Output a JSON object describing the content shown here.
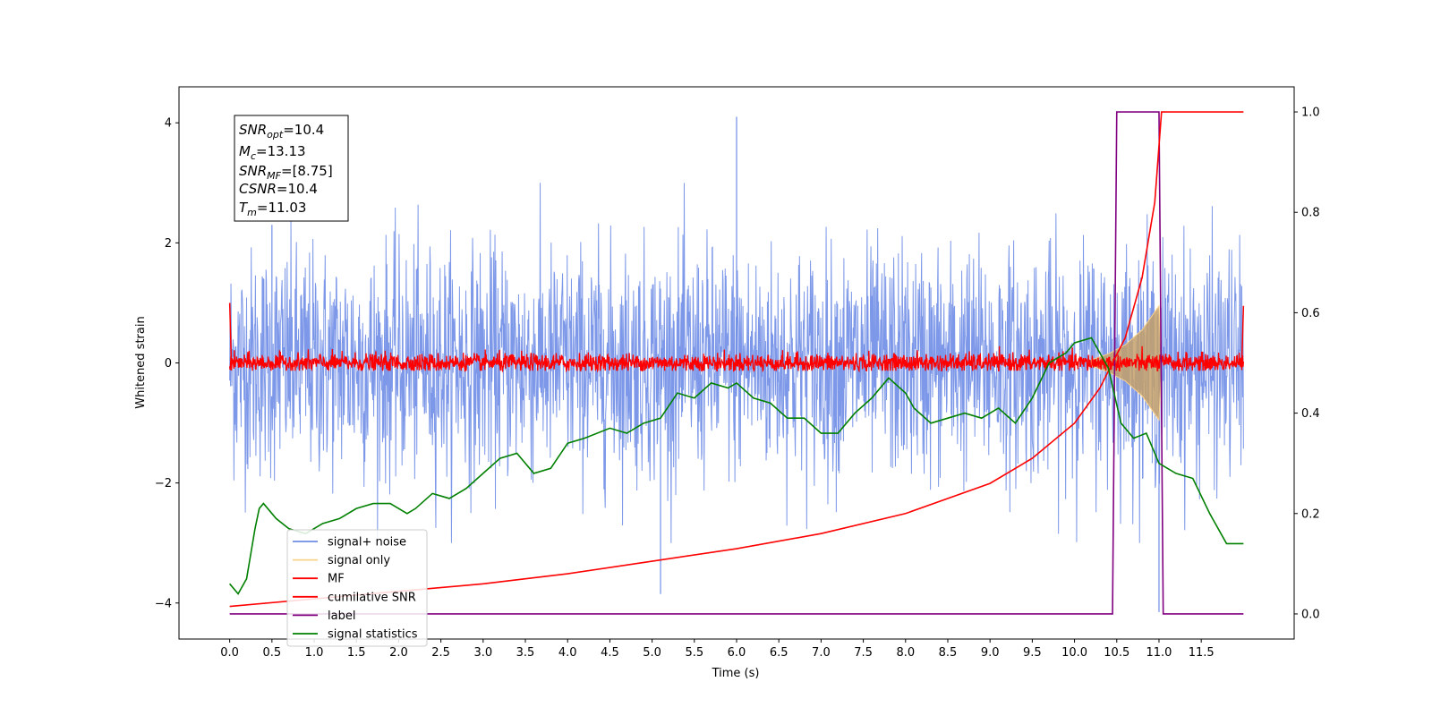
{
  "chart_data": {
    "type": "line",
    "xlabel": "Time (s)",
    "ylabel": "Whitened strain",
    "xlim": [
      -0.6,
      12.6
    ],
    "ylim": [
      -4.6,
      4.6
    ],
    "y2lim": [
      -0.05,
      1.05
    ],
    "x_ticks": [
      "0.0",
      "0.5",
      "1.0",
      "1.5",
      "2.0",
      "2.5",
      "3.0",
      "3.5",
      "4.0",
      "4.5",
      "5.0",
      "5.5",
      "6.0",
      "6.5",
      "7.0",
      "7.5",
      "8.0",
      "8.5",
      "9.0",
      "9.5",
      "10.0",
      "10.5",
      "11.0",
      "11.5"
    ],
    "y_ticks": [
      "4",
      "2",
      "0",
      "−2",
      "−4"
    ],
    "y2_ticks": [
      "1.0",
      "0.8",
      "0.6",
      "0.4",
      "0.2",
      "0.0"
    ],
    "info_box": {
      "snr_opt": {
        "name": "SNR",
        "sub": "opt",
        "value": "=10.4"
      },
      "mc": {
        "name": "M",
        "sub": "c",
        "value": "=13.13"
      },
      "snr_mf": {
        "name": "SNR",
        "sub": "MF",
        "value": "=[8.75]"
      },
      "csnr": {
        "name": "CSNR",
        "value": "=10.4"
      },
      "tm": {
        "name": "T",
        "sub": "m",
        "value": "=11.03"
      }
    },
    "legend": {
      "position": "lower-left",
      "items": [
        {
          "label": "signal+ noise",
          "color": "#6f8de6"
        },
        {
          "label": "signal only",
          "color": "#fbd28a"
        },
        {
          "label": "MF",
          "color": "#ff0000"
        },
        {
          "label": "cumilative SNR",
          "color": "#ff0000"
        },
        {
          "label": "label",
          "color": "#800080"
        },
        {
          "label": "signal statistics",
          "color": "#008000"
        }
      ]
    },
    "series": [
      {
        "name": "signal+ noise",
        "axis": "left",
        "color": "#6f8de6",
        "description": "whitened noise, unit-variance",
        "spikes": [
          [
            0.5,
            2.3
          ],
          [
            6.0,
            4.1
          ],
          [
            5.1,
            -3.85
          ],
          [
            11.0,
            -4.15
          ]
        ]
      },
      {
        "name": "signal only",
        "axis": "left",
        "color": "#fbd28a",
        "envelope": [
          [
            10.2,
            0.05
          ],
          [
            10.4,
            0.15
          ],
          [
            10.6,
            0.3
          ],
          [
            10.8,
            0.55
          ],
          [
            10.9,
            0.75
          ],
          [
            11.0,
            0.95
          ],
          [
            11.03,
            0.0
          ]
        ]
      },
      {
        "name": "MF",
        "axis": "left",
        "color": "#ff0000",
        "baseline": 0.0,
        "amplitude": 0.13
      },
      {
        "name": "cumilative SNR",
        "axis": "right",
        "color": "#ff0000",
        "points": [
          [
            0.0,
            0.015
          ],
          [
            1.0,
            0.03
          ],
          [
            2.0,
            0.045
          ],
          [
            3.0,
            0.06
          ],
          [
            4.0,
            0.08
          ],
          [
            5.0,
            0.105
          ],
          [
            6.0,
            0.13
          ],
          [
            7.0,
            0.16
          ],
          [
            8.0,
            0.2
          ],
          [
            9.0,
            0.26
          ],
          [
            9.5,
            0.31
          ],
          [
            10.0,
            0.38
          ],
          [
            10.3,
            0.45
          ],
          [
            10.6,
            0.55
          ],
          [
            10.8,
            0.67
          ],
          [
            10.95,
            0.82
          ],
          [
            11.03,
            1.0
          ],
          [
            12.0,
            1.0
          ]
        ]
      },
      {
        "name": "label",
        "axis": "right",
        "color": "#800080",
        "points": [
          [
            0.0,
            0.0
          ],
          [
            10.45,
            0.0
          ],
          [
            10.5,
            1.0
          ],
          [
            11.0,
            1.0
          ],
          [
            11.05,
            0.0
          ],
          [
            12.0,
            0.0
          ]
        ]
      },
      {
        "name": "signal statistics",
        "axis": "right",
        "color": "#008000",
        "points": [
          [
            0.0,
            0.06
          ],
          [
            0.1,
            0.04
          ],
          [
            0.2,
            0.07
          ],
          [
            0.3,
            0.17
          ],
          [
            0.35,
            0.21
          ],
          [
            0.4,
            0.22
          ],
          [
            0.55,
            0.19
          ],
          [
            0.7,
            0.17
          ],
          [
            0.9,
            0.16
          ],
          [
            1.1,
            0.18
          ],
          [
            1.3,
            0.19
          ],
          [
            1.5,
            0.21
          ],
          [
            1.7,
            0.22
          ],
          [
            1.9,
            0.22
          ],
          [
            2.1,
            0.2
          ],
          [
            2.2,
            0.21
          ],
          [
            2.4,
            0.24
          ],
          [
            2.6,
            0.23
          ],
          [
            2.8,
            0.25
          ],
          [
            3.0,
            0.28
          ],
          [
            3.2,
            0.31
          ],
          [
            3.4,
            0.32
          ],
          [
            3.6,
            0.28
          ],
          [
            3.8,
            0.29
          ],
          [
            4.0,
            0.34
          ],
          [
            4.2,
            0.35
          ],
          [
            4.5,
            0.37
          ],
          [
            4.7,
            0.36
          ],
          [
            4.9,
            0.38
          ],
          [
            5.1,
            0.39
          ],
          [
            5.3,
            0.44
          ],
          [
            5.5,
            0.43
          ],
          [
            5.7,
            0.46
          ],
          [
            5.9,
            0.45
          ],
          [
            6.0,
            0.46
          ],
          [
            6.2,
            0.43
          ],
          [
            6.4,
            0.42
          ],
          [
            6.6,
            0.39
          ],
          [
            6.8,
            0.39
          ],
          [
            7.0,
            0.36
          ],
          [
            7.2,
            0.36
          ],
          [
            7.4,
            0.4
          ],
          [
            7.6,
            0.43
          ],
          [
            7.8,
            0.47
          ],
          [
            8.0,
            0.44
          ],
          [
            8.1,
            0.41
          ],
          [
            8.3,
            0.38
          ],
          [
            8.5,
            0.39
          ],
          [
            8.7,
            0.4
          ],
          [
            8.9,
            0.39
          ],
          [
            9.1,
            0.41
          ],
          [
            9.3,
            0.38
          ],
          [
            9.5,
            0.43
          ],
          [
            9.7,
            0.5
          ],
          [
            9.9,
            0.52
          ],
          [
            10.0,
            0.54
          ],
          [
            10.2,
            0.55
          ],
          [
            10.4,
            0.49
          ],
          [
            10.55,
            0.38
          ],
          [
            10.7,
            0.35
          ],
          [
            10.85,
            0.36
          ],
          [
            11.0,
            0.3
          ],
          [
            11.2,
            0.28
          ],
          [
            11.4,
            0.27
          ],
          [
            11.6,
            0.2
          ],
          [
            11.8,
            0.14
          ],
          [
            12.0,
            0.14
          ]
        ]
      }
    ]
  }
}
